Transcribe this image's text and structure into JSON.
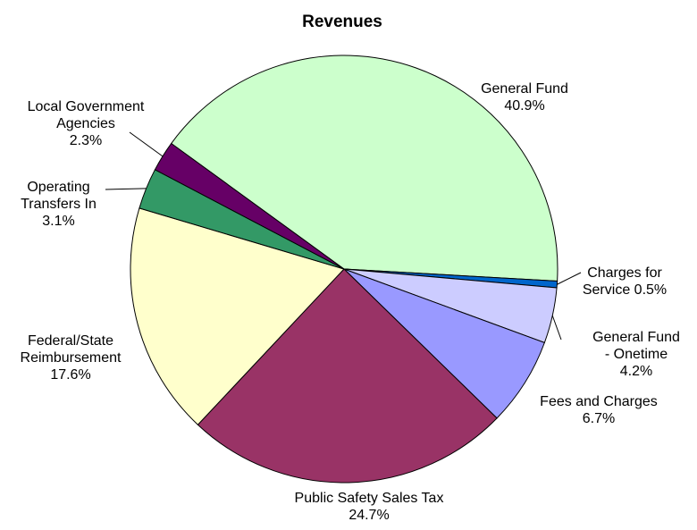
{
  "chart_data": {
    "type": "pie",
    "title": "Revenues",
    "categories": [
      "General Fund",
      "Charges for Service",
      "General Fund - Onetime",
      "Fees and Charges",
      "Public Safety Sales Tax",
      "Federal/State Reimbursement",
      "Operating Transfers In",
      "Local Government Agencies"
    ],
    "values": [
      40.9,
      0.5,
      4.2,
      6.7,
      24.7,
      17.6,
      3.1,
      2.3
    ],
    "value_labels": [
      "40.9%",
      "0.5%",
      "4.2%",
      "6.7%",
      "24.7%",
      "17.6%",
      "3.1%",
      "2.3%"
    ],
    "colors": [
      "#ccffcc",
      "#0066cc",
      "#ccccff",
      "#9999ff",
      "#993366",
      "#ffffcc",
      "#339966",
      "#660066"
    ]
  }
}
